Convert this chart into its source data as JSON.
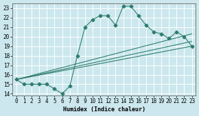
{
  "bg_color": "#cce8ee",
  "grid_color": "#ffffff",
  "line_color": "#2e7d6e",
  "xlim": [
    -0.5,
    23.5
  ],
  "ylim": [
    13.8,
    23.5
  ],
  "xticks": [
    0,
    1,
    2,
    3,
    4,
    5,
    6,
    7,
    8,
    9,
    10,
    11,
    12,
    13,
    14,
    15,
    16,
    17,
    18,
    19,
    20,
    21,
    22,
    23
  ],
  "yticks": [
    14,
    15,
    16,
    17,
    18,
    19,
    20,
    21,
    22,
    23
  ],
  "xlabel": "Humidex (Indice chaleur)",
  "zigzag_x": [
    0,
    1,
    2,
    3,
    4,
    5,
    6,
    7,
    8,
    9,
    10,
    11,
    12,
    13,
    14,
    15,
    16,
    17,
    18,
    19,
    20,
    21,
    22,
    23
  ],
  "zigzag_y": [
    15.5,
    15.0,
    15.0,
    15.0,
    15.0,
    14.5,
    14.0,
    14.8,
    18.0,
    21.0,
    21.8,
    22.2,
    22.2,
    21.2,
    23.2,
    23.2,
    22.2,
    21.2,
    20.5,
    20.3,
    19.8,
    20.5,
    20.0,
    19.0
  ],
  "line1_x": [
    0,
    23
  ],
  "line1_y": [
    15.5,
    19.0
  ],
  "line2_x": [
    0,
    23
  ],
  "line2_y": [
    15.5,
    19.5
  ],
  "line3_x": [
    0,
    23
  ],
  "line3_y": [
    15.5,
    20.3
  ]
}
